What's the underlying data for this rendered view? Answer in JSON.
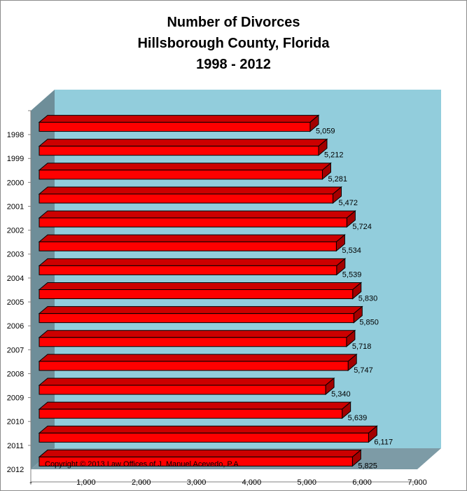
{
  "chart_data": {
    "type": "bar",
    "orientation": "horizontal",
    "style": "3d",
    "title_lines": [
      "Number of Divorces",
      "Hillsborough County, Florida",
      "1998 - 2012"
    ],
    "categories": [
      "1998",
      "1999",
      "2000",
      "2001",
      "2002",
      "2003",
      "2004",
      "2005",
      "2006",
      "2007",
      "2008",
      "2009",
      "2010",
      "2011",
      "2012"
    ],
    "values": [
      5059,
      5212,
      5281,
      5472,
      5724,
      5534,
      5539,
      5830,
      5850,
      5718,
      5747,
      5340,
      5639,
      6117,
      5825
    ],
    "value_labels": [
      "5,059",
      "5,212",
      "5,281",
      "5,472",
      "5,724",
      "5,534",
      "5,539",
      "5,830",
      "5,850",
      "5,718",
      "5,747",
      "5,340",
      "5,639",
      "6,117",
      "5,825"
    ],
    "x_ticks": [
      0,
      1000,
      2000,
      3000,
      4000,
      5000,
      6000,
      7000
    ],
    "x_tick_labels": [
      "-",
      "1,000",
      "2,000",
      "3,000",
      "4,000",
      "5,000",
      "6,000",
      "7,000"
    ],
    "xlim": [
      0,
      7000
    ],
    "grid": false,
    "legend": "none",
    "annotation": "Copyright © 2013 Law Offices of J. Manuel Acevedo, P.A.",
    "colors": {
      "bar_front": "#ff0000",
      "bar_top": "#cc0000",
      "bar_side": "#a30000",
      "back_wall": "#92cddc",
      "side_wall": "#6e8e99",
      "floor": "#7d9ba6",
      "outline": "#000000"
    }
  }
}
